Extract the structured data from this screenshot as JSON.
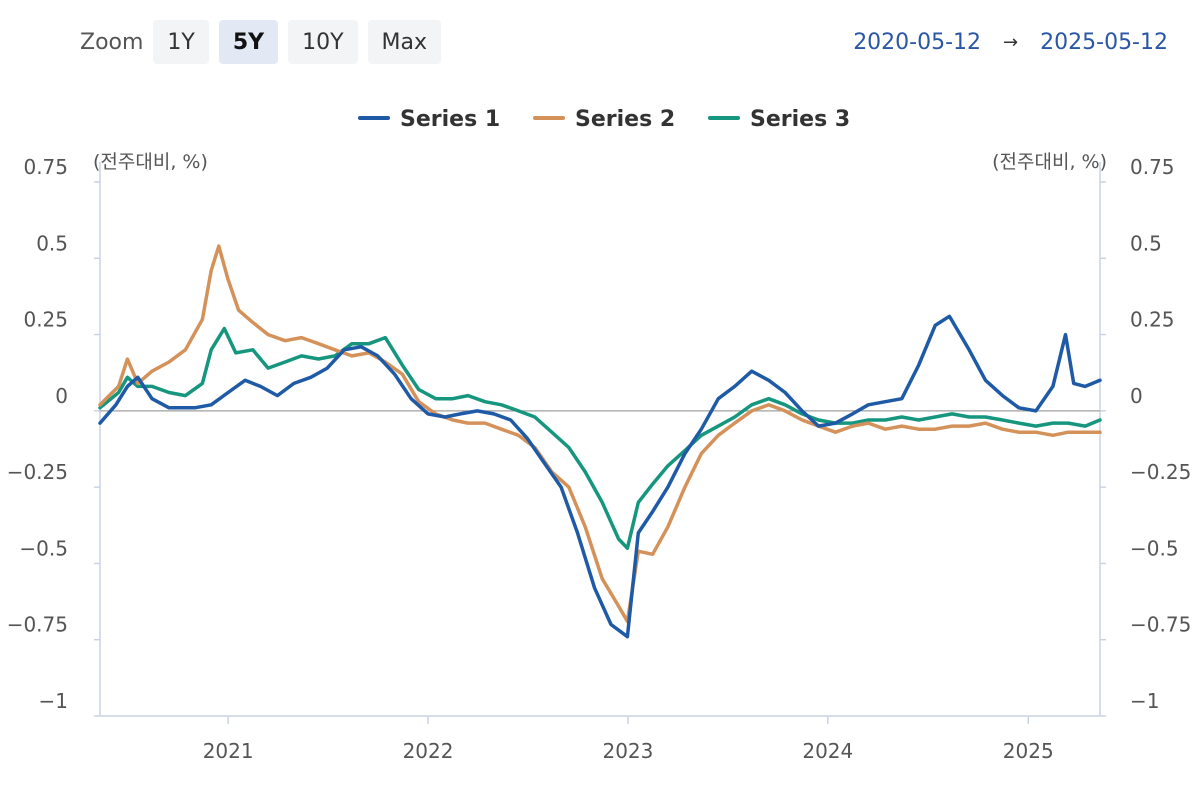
{
  "zoom": {
    "label": "Zoom",
    "buttons": [
      {
        "label": "1Y",
        "active": false
      },
      {
        "label": "5Y",
        "active": true
      },
      {
        "label": "10Y",
        "active": false
      },
      {
        "label": "Max",
        "active": false
      }
    ]
  },
  "range": {
    "from": "2020-05-12",
    "arrow": "→",
    "to": "2025-05-12"
  },
  "chart_data": {
    "type": "line",
    "xlim": [
      "2020-05-12",
      "2025-05-12"
    ],
    "ylim": [
      -1,
      0.75
    ],
    "y_ticks": [
      -1,
      -0.75,
      -0.5,
      -0.25,
      0,
      0.25,
      0.5,
      0.75
    ],
    "y_tick_labels": [
      "−1",
      "−0.75",
      "−0.5",
      "−0.25",
      "0",
      "0.25",
      "0.5",
      "0.75"
    ],
    "x_ticks": [
      "2021-01-01",
      "2022-01-01",
      "2023-01-01",
      "2024-01-01",
      "2025-01-01"
    ],
    "x_tick_labels": [
      "2021",
      "2022",
      "2023",
      "2024",
      "2025"
    ],
    "y_unit_left": "(전주대비, %)",
    "y_unit_right": "(전주대비, %)",
    "legend_position": "top-center",
    "grid": false,
    "series": [
      {
        "name": "Series 1",
        "color": "#1f5aa6",
        "points": [
          [
            "2020-05-12",
            -0.04
          ],
          [
            "2020-06-10",
            0.02
          ],
          [
            "2020-07-01",
            0.08
          ],
          [
            "2020-07-20",
            0.11
          ],
          [
            "2020-08-15",
            0.04
          ],
          [
            "2020-09-15",
            0.01
          ],
          [
            "2020-11-01",
            0.01
          ],
          [
            "2020-12-01",
            0.02
          ],
          [
            "2021-01-01",
            0.06
          ],
          [
            "2021-02-01",
            0.1
          ],
          [
            "2021-03-01",
            0.08
          ],
          [
            "2021-04-01",
            0.05
          ],
          [
            "2021-05-01",
            0.09
          ],
          [
            "2021-06-01",
            0.11
          ],
          [
            "2021-07-01",
            0.14
          ],
          [
            "2021-08-01",
            0.2
          ],
          [
            "2021-09-01",
            0.21
          ],
          [
            "2021-10-01",
            0.18
          ],
          [
            "2021-11-01",
            0.12
          ],
          [
            "2021-12-01",
            0.04
          ],
          [
            "2022-01-01",
            -0.01
          ],
          [
            "2022-02-01",
            -0.02
          ],
          [
            "2022-03-01",
            -0.01
          ],
          [
            "2022-04-01",
            0.0
          ],
          [
            "2022-05-01",
            -0.01
          ],
          [
            "2022-06-01",
            -0.03
          ],
          [
            "2022-07-01",
            -0.09
          ],
          [
            "2022-08-01",
            -0.17
          ],
          [
            "2022-09-01",
            -0.25
          ],
          [
            "2022-10-01",
            -0.4
          ],
          [
            "2022-11-01",
            -0.58
          ],
          [
            "2022-12-01",
            -0.7
          ],
          [
            "2022-12-31",
            -0.74
          ],
          [
            "2023-01-20",
            -0.4
          ],
          [
            "2023-02-15",
            -0.33
          ],
          [
            "2023-03-15",
            -0.25
          ],
          [
            "2023-04-15",
            -0.14
          ],
          [
            "2023-05-15",
            -0.06
          ],
          [
            "2023-06-15",
            0.04
          ],
          [
            "2023-07-15",
            0.08
          ],
          [
            "2023-08-15",
            0.13
          ],
          [
            "2023-09-15",
            0.1
          ],
          [
            "2023-10-15",
            0.06
          ],
          [
            "2023-11-15",
            0.0
          ],
          [
            "2023-12-15",
            -0.05
          ],
          [
            "2024-01-15",
            -0.04
          ],
          [
            "2024-02-15",
            -0.01
          ],
          [
            "2024-03-15",
            0.02
          ],
          [
            "2024-04-15",
            0.03
          ],
          [
            "2024-05-15",
            0.04
          ],
          [
            "2024-06-15",
            0.15
          ],
          [
            "2024-07-15",
            0.28
          ],
          [
            "2024-08-10",
            0.31
          ],
          [
            "2024-09-15",
            0.2
          ],
          [
            "2024-10-15",
            0.1
          ],
          [
            "2024-11-15",
            0.05
          ],
          [
            "2024-12-15",
            0.01
          ],
          [
            "2025-01-15",
            0.0
          ],
          [
            "2025-02-15",
            0.08
          ],
          [
            "2025-03-10",
            0.25
          ],
          [
            "2025-03-25",
            0.09
          ],
          [
            "2025-04-15",
            0.08
          ],
          [
            "2025-05-12",
            0.1
          ]
        ]
      },
      {
        "name": "Series 2",
        "color": "#d4925a",
        "points": [
          [
            "2020-05-12",
            0.02
          ],
          [
            "2020-06-15",
            0.08
          ],
          [
            "2020-07-01",
            0.17
          ],
          [
            "2020-07-20",
            0.09
          ],
          [
            "2020-08-15",
            0.13
          ],
          [
            "2020-09-15",
            0.16
          ],
          [
            "2020-10-15",
            0.2
          ],
          [
            "2020-11-15",
            0.3
          ],
          [
            "2020-12-01",
            0.46
          ],
          [
            "2020-12-15",
            0.54
          ],
          [
            "2021-01-01",
            0.43
          ],
          [
            "2021-01-20",
            0.33
          ],
          [
            "2021-02-15",
            0.29
          ],
          [
            "2021-03-15",
            0.25
          ],
          [
            "2021-04-15",
            0.23
          ],
          [
            "2021-05-15",
            0.24
          ],
          [
            "2021-06-15",
            0.22
          ],
          [
            "2021-07-15",
            0.2
          ],
          [
            "2021-08-15",
            0.18
          ],
          [
            "2021-09-15",
            0.19
          ],
          [
            "2021-10-15",
            0.16
          ],
          [
            "2021-11-15",
            0.12
          ],
          [
            "2021-12-15",
            0.03
          ],
          [
            "2022-01-15",
            -0.01
          ],
          [
            "2022-02-15",
            -0.03
          ],
          [
            "2022-03-15",
            -0.04
          ],
          [
            "2022-04-15",
            -0.04
          ],
          [
            "2022-05-15",
            -0.06
          ],
          [
            "2022-06-15",
            -0.08
          ],
          [
            "2022-07-15",
            -0.12
          ],
          [
            "2022-08-15",
            -0.2
          ],
          [
            "2022-09-15",
            -0.25
          ],
          [
            "2022-10-15",
            -0.38
          ],
          [
            "2022-11-15",
            -0.55
          ],
          [
            "2022-12-15",
            -0.64
          ],
          [
            "2022-12-31",
            -0.69
          ],
          [
            "2023-01-20",
            -0.46
          ],
          [
            "2023-02-15",
            -0.47
          ],
          [
            "2023-03-15",
            -0.38
          ],
          [
            "2023-04-15",
            -0.25
          ],
          [
            "2023-05-15",
            -0.14
          ],
          [
            "2023-06-15",
            -0.08
          ],
          [
            "2023-07-15",
            -0.04
          ],
          [
            "2023-08-15",
            0.0
          ],
          [
            "2023-09-15",
            0.02
          ],
          [
            "2023-10-15",
            0.0
          ],
          [
            "2023-11-15",
            -0.03
          ],
          [
            "2023-12-15",
            -0.05
          ],
          [
            "2024-01-15",
            -0.07
          ],
          [
            "2024-02-15",
            -0.05
          ],
          [
            "2024-03-15",
            -0.04
          ],
          [
            "2024-04-15",
            -0.06
          ],
          [
            "2024-05-15",
            -0.05
          ],
          [
            "2024-06-15",
            -0.06
          ],
          [
            "2024-07-15",
            -0.06
          ],
          [
            "2024-08-15",
            -0.05
          ],
          [
            "2024-09-15",
            -0.05
          ],
          [
            "2024-10-15",
            -0.04
          ],
          [
            "2024-11-15",
            -0.06
          ],
          [
            "2024-12-15",
            -0.07
          ],
          [
            "2025-01-15",
            -0.07
          ],
          [
            "2025-02-15",
            -0.08
          ],
          [
            "2025-03-15",
            -0.07
          ],
          [
            "2025-04-15",
            -0.07
          ],
          [
            "2025-05-12",
            -0.07
          ]
        ]
      },
      {
        "name": "Series 3",
        "color": "#16967e",
        "points": [
          [
            "2020-05-12",
            0.01
          ],
          [
            "2020-06-15",
            0.06
          ],
          [
            "2020-07-01",
            0.11
          ],
          [
            "2020-07-20",
            0.08
          ],
          [
            "2020-08-15",
            0.08
          ],
          [
            "2020-09-15",
            0.06
          ],
          [
            "2020-10-15",
            0.05
          ],
          [
            "2020-11-15",
            0.09
          ],
          [
            "2020-12-01",
            0.2
          ],
          [
            "2020-12-25",
            0.27
          ],
          [
            "2021-01-15",
            0.19
          ],
          [
            "2021-02-15",
            0.2
          ],
          [
            "2021-03-15",
            0.14
          ],
          [
            "2021-04-15",
            0.16
          ],
          [
            "2021-05-15",
            0.18
          ],
          [
            "2021-06-15",
            0.17
          ],
          [
            "2021-07-15",
            0.18
          ],
          [
            "2021-08-15",
            0.22
          ],
          [
            "2021-09-15",
            0.22
          ],
          [
            "2021-10-15",
            0.24
          ],
          [
            "2021-11-15",
            0.15
          ],
          [
            "2021-12-15",
            0.07
          ],
          [
            "2022-01-15",
            0.04
          ],
          [
            "2022-02-15",
            0.04
          ],
          [
            "2022-03-15",
            0.05
          ],
          [
            "2022-04-15",
            0.03
          ],
          [
            "2022-05-15",
            0.02
          ],
          [
            "2022-06-15",
            0.0
          ],
          [
            "2022-07-15",
            -0.02
          ],
          [
            "2022-08-15",
            -0.07
          ],
          [
            "2022-09-15",
            -0.12
          ],
          [
            "2022-10-15",
            -0.2
          ],
          [
            "2022-11-15",
            -0.3
          ],
          [
            "2022-12-15",
            -0.42
          ],
          [
            "2022-12-31",
            -0.45
          ],
          [
            "2023-01-20",
            -0.3
          ],
          [
            "2023-02-15",
            -0.24
          ],
          [
            "2023-03-15",
            -0.18
          ],
          [
            "2023-04-15",
            -0.13
          ],
          [
            "2023-05-15",
            -0.08
          ],
          [
            "2023-06-15",
            -0.05
          ],
          [
            "2023-07-15",
            -0.02
          ],
          [
            "2023-08-15",
            0.02
          ],
          [
            "2023-09-15",
            0.04
          ],
          [
            "2023-10-15",
            0.02
          ],
          [
            "2023-11-15",
            -0.01
          ],
          [
            "2023-12-15",
            -0.03
          ],
          [
            "2024-01-15",
            -0.04
          ],
          [
            "2024-02-15",
            -0.04
          ],
          [
            "2024-03-15",
            -0.03
          ],
          [
            "2024-04-15",
            -0.03
          ],
          [
            "2024-05-15",
            -0.02
          ],
          [
            "2024-06-15",
            -0.03
          ],
          [
            "2024-07-15",
            -0.02
          ],
          [
            "2024-08-15",
            -0.01
          ],
          [
            "2024-09-15",
            -0.02
          ],
          [
            "2024-10-15",
            -0.02
          ],
          [
            "2024-11-15",
            -0.03
          ],
          [
            "2024-12-15",
            -0.04
          ],
          [
            "2025-01-15",
            -0.05
          ],
          [
            "2025-02-15",
            -0.04
          ],
          [
            "2025-03-15",
            -0.04
          ],
          [
            "2025-04-15",
            -0.05
          ],
          [
            "2025-05-12",
            -0.03
          ]
        ]
      }
    ]
  }
}
